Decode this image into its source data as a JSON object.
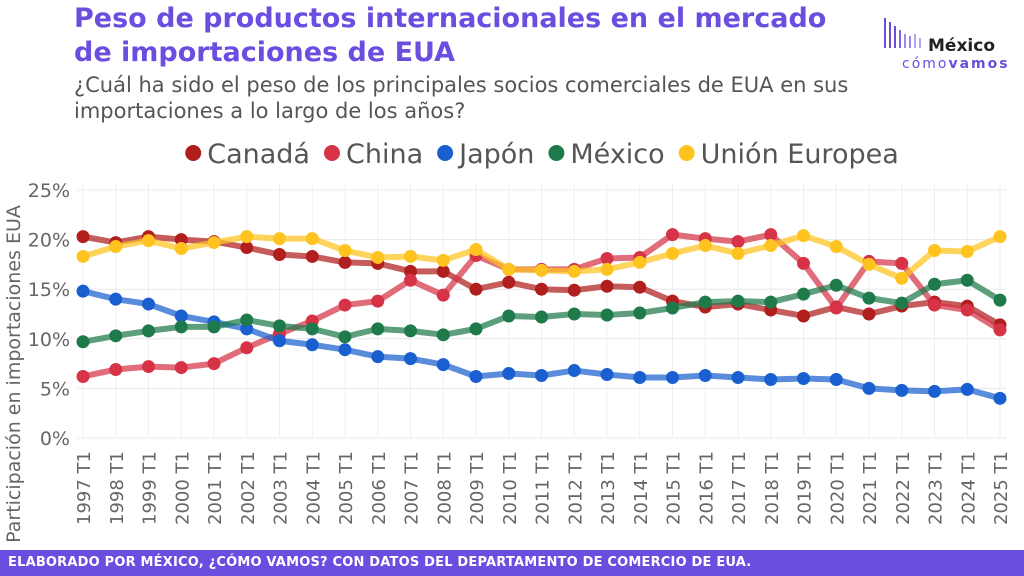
{
  "header": {
    "title": "Peso de productos internacionales en el mercado de importaciones de EUA",
    "subtitle": "¿Cuál ha sido el peso de los principales socios comerciales de EUA en sus importaciones a lo largo de los años?"
  },
  "logo": {
    "name": "México",
    "tagline_prefix": "cómo",
    "tagline_bold": "vamos",
    "accent": "#6b4de0"
  },
  "footer": {
    "text": "ELABORADO POR MÉXICO, ¿CÓMO VAMOS? CON DATOS DEL DEPARTAMENTO DE COMERCIO DE EUA."
  },
  "chart_data": {
    "type": "line",
    "ylabel": "Participación en importaciones EUA",
    "xlabel": "",
    "ylim": [
      0,
      25
    ],
    "yticks": [
      "0%",
      "5%",
      "10%",
      "15%",
      "20%",
      "25%"
    ],
    "grid": true,
    "legend_position": "top",
    "categories": [
      "1997 T1",
      "1998 T1",
      "1999 T1",
      "2000 T1",
      "2001 T1",
      "2002 T1",
      "2003 T1",
      "2004 T1",
      "2005 T1",
      "2006 T1",
      "2007 T1",
      "2008 T1",
      "2009 T1",
      "2010 T1",
      "2011 T1",
      "2012 T1",
      "2013 T1",
      "2014 T1",
      "2015 T1",
      "2016 T1",
      "2017 T1",
      "2018 T1",
      "2019 T1",
      "2020 T1",
      "2021 T1",
      "2022 T1",
      "2023 T1",
      "2024 T1",
      "2025 T1"
    ],
    "series": [
      {
        "name": "Canadá",
        "color": "#b01e1e",
        "values": [
          20.3,
          19.7,
          20.3,
          20.0,
          19.8,
          19.2,
          18.5,
          18.3,
          17.7,
          17.6,
          16.8,
          16.8,
          15.0,
          15.7,
          15.0,
          14.9,
          15.3,
          15.2,
          13.8,
          13.2,
          13.5,
          12.9,
          12.3,
          13.2,
          12.5,
          13.3,
          13.7,
          13.3,
          11.4
        ]
      },
      {
        "name": "China",
        "color": "#d63347",
        "values": [
          6.2,
          6.9,
          7.2,
          7.1,
          7.5,
          9.1,
          10.5,
          11.8,
          13.4,
          13.8,
          15.9,
          14.4,
          18.4,
          17.0,
          17.0,
          17.0,
          18.1,
          18.2,
          20.5,
          20.1,
          19.8,
          20.5,
          17.6,
          13.1,
          17.8,
          17.6,
          13.4,
          12.9,
          10.9
        ]
      },
      {
        "name": "Japón",
        "color": "#1a5fcf",
        "values": [
          14.8,
          14.0,
          13.5,
          12.3,
          11.7,
          11.0,
          9.8,
          9.4,
          8.9,
          8.2,
          8.0,
          7.4,
          6.2,
          6.5,
          6.3,
          6.8,
          6.4,
          6.1,
          6.1,
          6.3,
          6.1,
          5.9,
          6.0,
          5.9,
          5.0,
          4.8,
          4.7,
          4.9,
          4.0
        ]
      },
      {
        "name": "México",
        "color": "#1f7a4b",
        "values": [
          9.7,
          10.3,
          10.8,
          11.2,
          11.2,
          11.9,
          11.3,
          11.0,
          10.2,
          11.0,
          10.8,
          10.4,
          11.0,
          12.3,
          12.2,
          12.5,
          12.4,
          12.6,
          13.1,
          13.7,
          13.8,
          13.7,
          14.5,
          15.4,
          14.1,
          13.6,
          15.5,
          15.9,
          13.9
        ]
      },
      {
        "name": "Unión Europea",
        "color": "#ffc31f",
        "values": [
          18.3,
          19.3,
          19.9,
          19.1,
          19.7,
          20.3,
          20.1,
          20.1,
          18.9,
          18.2,
          18.3,
          17.9,
          19.0,
          17.0,
          16.9,
          16.8,
          17.0,
          17.7,
          18.6,
          19.4,
          18.6,
          19.4,
          20.4,
          19.3,
          17.5,
          16.1,
          18.9,
          18.8,
          20.3
        ]
      }
    ]
  }
}
